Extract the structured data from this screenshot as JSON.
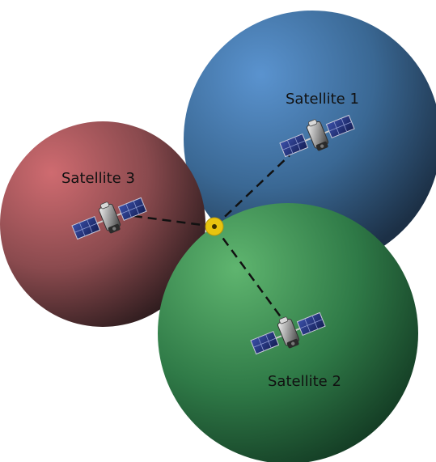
{
  "labels": {
    "satellite_1": "Satellite 1",
    "satellite_2": "Satellite 2",
    "satellite_3": "Satellite 3"
  },
  "colors": {
    "sphere_1": "#3f73a6",
    "sphere_2": "#3d8a4f",
    "sphere_3": "#a65a5e",
    "receiver": "#e8c40f",
    "line": "#111111"
  },
  "icons": {
    "satellite": "satellite-icon",
    "receiver": "receiver-dot"
  }
}
